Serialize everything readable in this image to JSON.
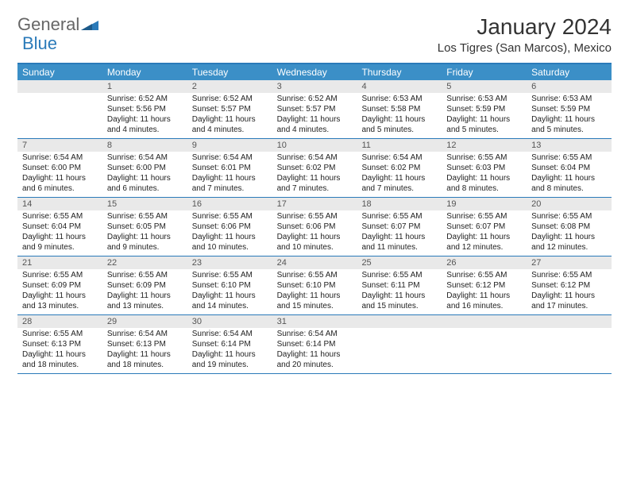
{
  "logo": {
    "general": "General",
    "blue": "Blue"
  },
  "title": "January 2024",
  "subtitle": "Los Tigres (San Marcos), Mexico",
  "colors": {
    "header_bg": "#3b8fc7",
    "header_text": "#ffffff",
    "border": "#2a7ab9",
    "daynum_bg": "#e9e9e9",
    "daynum_text": "#555555",
    "body_text": "#222222"
  },
  "day_headers": [
    "Sunday",
    "Monday",
    "Tuesday",
    "Wednesday",
    "Thursday",
    "Friday",
    "Saturday"
  ],
  "weeks": [
    [
      {
        "n": "",
        "sunrise": "",
        "sunset": "",
        "daylight": ""
      },
      {
        "n": "1",
        "sunrise": "Sunrise: 6:52 AM",
        "sunset": "Sunset: 5:56 PM",
        "daylight": "Daylight: 11 hours and 4 minutes."
      },
      {
        "n": "2",
        "sunrise": "Sunrise: 6:52 AM",
        "sunset": "Sunset: 5:57 PM",
        "daylight": "Daylight: 11 hours and 4 minutes."
      },
      {
        "n": "3",
        "sunrise": "Sunrise: 6:52 AM",
        "sunset": "Sunset: 5:57 PM",
        "daylight": "Daylight: 11 hours and 4 minutes."
      },
      {
        "n": "4",
        "sunrise": "Sunrise: 6:53 AM",
        "sunset": "Sunset: 5:58 PM",
        "daylight": "Daylight: 11 hours and 5 minutes."
      },
      {
        "n": "5",
        "sunrise": "Sunrise: 6:53 AM",
        "sunset": "Sunset: 5:59 PM",
        "daylight": "Daylight: 11 hours and 5 minutes."
      },
      {
        "n": "6",
        "sunrise": "Sunrise: 6:53 AM",
        "sunset": "Sunset: 5:59 PM",
        "daylight": "Daylight: 11 hours and 5 minutes."
      }
    ],
    [
      {
        "n": "7",
        "sunrise": "Sunrise: 6:54 AM",
        "sunset": "Sunset: 6:00 PM",
        "daylight": "Daylight: 11 hours and 6 minutes."
      },
      {
        "n": "8",
        "sunrise": "Sunrise: 6:54 AM",
        "sunset": "Sunset: 6:00 PM",
        "daylight": "Daylight: 11 hours and 6 minutes."
      },
      {
        "n": "9",
        "sunrise": "Sunrise: 6:54 AM",
        "sunset": "Sunset: 6:01 PM",
        "daylight": "Daylight: 11 hours and 7 minutes."
      },
      {
        "n": "10",
        "sunrise": "Sunrise: 6:54 AM",
        "sunset": "Sunset: 6:02 PM",
        "daylight": "Daylight: 11 hours and 7 minutes."
      },
      {
        "n": "11",
        "sunrise": "Sunrise: 6:54 AM",
        "sunset": "Sunset: 6:02 PM",
        "daylight": "Daylight: 11 hours and 7 minutes."
      },
      {
        "n": "12",
        "sunrise": "Sunrise: 6:55 AM",
        "sunset": "Sunset: 6:03 PM",
        "daylight": "Daylight: 11 hours and 8 minutes."
      },
      {
        "n": "13",
        "sunrise": "Sunrise: 6:55 AM",
        "sunset": "Sunset: 6:04 PM",
        "daylight": "Daylight: 11 hours and 8 minutes."
      }
    ],
    [
      {
        "n": "14",
        "sunrise": "Sunrise: 6:55 AM",
        "sunset": "Sunset: 6:04 PM",
        "daylight": "Daylight: 11 hours and 9 minutes."
      },
      {
        "n": "15",
        "sunrise": "Sunrise: 6:55 AM",
        "sunset": "Sunset: 6:05 PM",
        "daylight": "Daylight: 11 hours and 9 minutes."
      },
      {
        "n": "16",
        "sunrise": "Sunrise: 6:55 AM",
        "sunset": "Sunset: 6:06 PM",
        "daylight": "Daylight: 11 hours and 10 minutes."
      },
      {
        "n": "17",
        "sunrise": "Sunrise: 6:55 AM",
        "sunset": "Sunset: 6:06 PM",
        "daylight": "Daylight: 11 hours and 10 minutes."
      },
      {
        "n": "18",
        "sunrise": "Sunrise: 6:55 AM",
        "sunset": "Sunset: 6:07 PM",
        "daylight": "Daylight: 11 hours and 11 minutes."
      },
      {
        "n": "19",
        "sunrise": "Sunrise: 6:55 AM",
        "sunset": "Sunset: 6:07 PM",
        "daylight": "Daylight: 11 hours and 12 minutes."
      },
      {
        "n": "20",
        "sunrise": "Sunrise: 6:55 AM",
        "sunset": "Sunset: 6:08 PM",
        "daylight": "Daylight: 11 hours and 12 minutes."
      }
    ],
    [
      {
        "n": "21",
        "sunrise": "Sunrise: 6:55 AM",
        "sunset": "Sunset: 6:09 PM",
        "daylight": "Daylight: 11 hours and 13 minutes."
      },
      {
        "n": "22",
        "sunrise": "Sunrise: 6:55 AM",
        "sunset": "Sunset: 6:09 PM",
        "daylight": "Daylight: 11 hours and 13 minutes."
      },
      {
        "n": "23",
        "sunrise": "Sunrise: 6:55 AM",
        "sunset": "Sunset: 6:10 PM",
        "daylight": "Daylight: 11 hours and 14 minutes."
      },
      {
        "n": "24",
        "sunrise": "Sunrise: 6:55 AM",
        "sunset": "Sunset: 6:10 PM",
        "daylight": "Daylight: 11 hours and 15 minutes."
      },
      {
        "n": "25",
        "sunrise": "Sunrise: 6:55 AM",
        "sunset": "Sunset: 6:11 PM",
        "daylight": "Daylight: 11 hours and 15 minutes."
      },
      {
        "n": "26",
        "sunrise": "Sunrise: 6:55 AM",
        "sunset": "Sunset: 6:12 PM",
        "daylight": "Daylight: 11 hours and 16 minutes."
      },
      {
        "n": "27",
        "sunrise": "Sunrise: 6:55 AM",
        "sunset": "Sunset: 6:12 PM",
        "daylight": "Daylight: 11 hours and 17 minutes."
      }
    ],
    [
      {
        "n": "28",
        "sunrise": "Sunrise: 6:55 AM",
        "sunset": "Sunset: 6:13 PM",
        "daylight": "Daylight: 11 hours and 18 minutes."
      },
      {
        "n": "29",
        "sunrise": "Sunrise: 6:54 AM",
        "sunset": "Sunset: 6:13 PM",
        "daylight": "Daylight: 11 hours and 18 minutes."
      },
      {
        "n": "30",
        "sunrise": "Sunrise: 6:54 AM",
        "sunset": "Sunset: 6:14 PM",
        "daylight": "Daylight: 11 hours and 19 minutes."
      },
      {
        "n": "31",
        "sunrise": "Sunrise: 6:54 AM",
        "sunset": "Sunset: 6:14 PM",
        "daylight": "Daylight: 11 hours and 20 minutes."
      },
      {
        "n": "",
        "sunrise": "",
        "sunset": "",
        "daylight": ""
      },
      {
        "n": "",
        "sunrise": "",
        "sunset": "",
        "daylight": ""
      },
      {
        "n": "",
        "sunrise": "",
        "sunset": "",
        "daylight": ""
      }
    ]
  ]
}
